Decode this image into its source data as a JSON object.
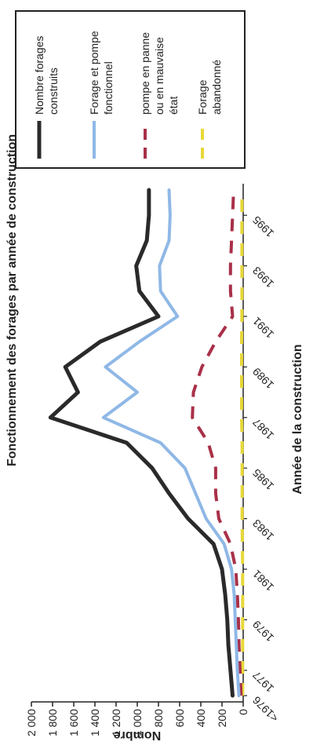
{
  "chart_data": {
    "type": "line",
    "title": "Fonctionnement des forages par année de construction",
    "xlabel": "Année de la construction",
    "ylabel": "Nombre",
    "x": [
      "<1976",
      "1977",
      "1978",
      "1979",
      "1980",
      "1981",
      "1982",
      "1983",
      "1984",
      "1985",
      "1986",
      "1987",
      "1988",
      "1989",
      "1990",
      "1991",
      "1992",
      "1993",
      "1994",
      "1995",
      "1996"
    ],
    "x_tick_labels": [
      "<1976",
      "1977",
      "1979",
      "1981",
      "1983",
      "1985",
      "1987",
      "1989",
      "1991",
      "1993",
      "1995"
    ],
    "ylim": [
      0,
      2000
    ],
    "y_ticks": [
      "0",
      "200",
      "400",
      "600",
      "800",
      "1 000",
      "1 200",
      "1 400",
      "1 600",
      "1 800",
      "2 000"
    ],
    "y_tick_values": [
      0,
      200,
      400,
      600,
      800,
      1000,
      1200,
      1400,
      1600,
      1800,
      2000
    ],
    "grid": false,
    "legend_position": "right",
    "series": [
      {
        "name": "Nombre forages construits",
        "color": "#2a2a2a",
        "dash": "solid",
        "values": [
          100,
          120,
          140,
          150,
          170,
          200,
          280,
          520,
          700,
          860,
          1100,
          1820,
          1560,
          1680,
          1350,
          800,
          980,
          1010,
          910,
          890,
          890
        ]
      },
      {
        "name": "Forage et pompe fonctionnel",
        "color": "#8fb8e6",
        "dash": "solid",
        "values": [
          40,
          55,
          65,
          75,
          85,
          110,
          180,
          350,
          450,
          550,
          780,
          1320,
          1000,
          1300,
          980,
          620,
          780,
          790,
          700,
          690,
          700
        ]
      },
      {
        "name": "pompe en panne ou en mauvaise état",
        "color": "#a93048",
        "dash": "dashed",
        "values": [
          20,
          30,
          40,
          45,
          55,
          70,
          120,
          230,
          260,
          260,
          330,
          480,
          470,
          390,
          260,
          100,
          120,
          120,
          110,
          100,
          90
        ]
      },
      {
        "name": "Forage abandonné",
        "color": "#e8d838",
        "dash": "dashed",
        "values": [
          5,
          5,
          5,
          5,
          5,
          5,
          8,
          10,
          10,
          10,
          10,
          15,
          15,
          15,
          15,
          12,
          12,
          12,
          12,
          12,
          12
        ]
      }
    ]
  }
}
